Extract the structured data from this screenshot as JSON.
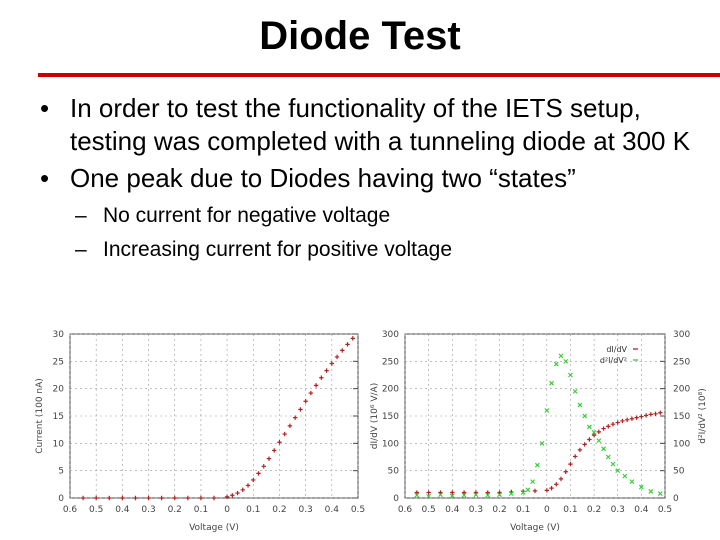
{
  "slide": {
    "title": "Diode Test",
    "bullets": [
      "In order to test the functionality of the IETS setup, testing was completed with a tunneling diode at 300 K",
      "One peak due to Diodes having two “states”"
    ],
    "sub_bullets": [
      "No current for negative voltage",
      "Increasing current for positive voltage"
    ],
    "accent_color": "#cc0000"
  },
  "chart_data": [
    {
      "type": "scatter",
      "xlabel": "Voltage (V)",
      "ylabel": "Current (100 nA)",
      "x_ticks": [
        "0.6",
        "0.5",
        "0.4",
        "0.3",
        "0.2",
        "0.1",
        "0",
        "0.1",
        "0.2",
        "0.3",
        "0.4",
        "0.5"
      ],
      "y_ticks": [
        "0",
        "5",
        "10",
        "15",
        "20",
        "25",
        "30"
      ],
      "xlim": [
        -0.6,
        0.5
      ],
      "ylim": [
        0,
        30
      ],
      "grid": true,
      "series": [
        {
          "color": "#b22222",
          "x": [
            -0.55,
            -0.5,
            -0.45,
            -0.4,
            -0.35,
            -0.3,
            -0.25,
            -0.2,
            -0.15,
            -0.1,
            -0.05,
            0,
            0.02,
            0.04,
            0.06,
            0.08,
            0.1,
            0.12,
            0.14,
            0.16,
            0.18,
            0.2,
            0.22,
            0.24,
            0.26,
            0.28,
            0.3,
            0.32,
            0.34,
            0.36,
            0.38,
            0.4,
            0.42,
            0.44,
            0.46,
            0.48
          ],
          "y": [
            0,
            0,
            0,
            0,
            0,
            0,
            0,
            0,
            0,
            0,
            0,
            0.2,
            0.5,
            0.9,
            1.5,
            2.3,
            3.3,
            4.5,
            5.8,
            7.2,
            8.7,
            10.2,
            11.7,
            13.2,
            14.7,
            16.2,
            17.7,
            19.2,
            20.6,
            22,
            23.3,
            24.6,
            25.8,
            27,
            28.1,
            29.2
          ]
        }
      ]
    },
    {
      "type": "scatter",
      "xlabel": "Voltage (V)",
      "ylabel": "dI/dV (10⁶ V/A)",
      "ylabel_right": "d²I/dV² (10⁸)",
      "x_ticks": [
        "0.6",
        "0.5",
        "0.4",
        "0.3",
        "0.2",
        "0.1",
        "0",
        "0.1",
        "0.2",
        "0.3",
        "0.4",
        "0.5"
      ],
      "y_ticks": [
        "0",
        "50",
        "100",
        "150",
        "200",
        "250",
        "300"
      ],
      "xlim": [
        -0.6,
        0.5
      ],
      "ylim": [
        0,
        300
      ],
      "grid": true,
      "legend": "top-right",
      "series": [
        {
          "name": "dI/dV",
          "color": "#b22222",
          "x": [
            -0.55,
            -0.5,
            -0.45,
            -0.4,
            -0.35,
            -0.3,
            -0.25,
            -0.2,
            -0.15,
            -0.1,
            -0.05,
            0,
            0.02,
            0.04,
            0.06,
            0.08,
            0.1,
            0.12,
            0.14,
            0.16,
            0.18,
            0.2,
            0.22,
            0.24,
            0.26,
            0.28,
            0.3,
            0.32,
            0.34,
            0.36,
            0.38,
            0.4,
            0.42,
            0.44,
            0.46,
            0.48
          ],
          "y": [
            10,
            10,
            10,
            10,
            10,
            10,
            10,
            10,
            11,
            12,
            13,
            14,
            18,
            25,
            35,
            48,
            62,
            76,
            88,
            98,
            107,
            115,
            121,
            127,
            131,
            135,
            138,
            141,
            143,
            145,
            147,
            149,
            151,
            153,
            154,
            156
          ]
        },
        {
          "name": "d²I/dV²",
          "color": "#33cc33",
          "x": [
            -0.55,
            -0.5,
            -0.45,
            -0.4,
            -0.35,
            -0.3,
            -0.25,
            -0.2,
            -0.15,
            -0.1,
            -0.08,
            -0.06,
            -0.04,
            -0.02,
            0,
            0.02,
            0.04,
            0.06,
            0.08,
            0.1,
            0.12,
            0.14,
            0.16,
            0.18,
            0.2,
            0.22,
            0.24,
            0.26,
            0.28,
            0.3,
            0.33,
            0.36,
            0.4,
            0.44,
            0.48
          ],
          "y": [
            5,
            3,
            6,
            4,
            5,
            6,
            5,
            6,
            8,
            10,
            15,
            30,
            60,
            100,
            160,
            210,
            245,
            260,
            250,
            225,
            195,
            170,
            150,
            130,
            120,
            105,
            90,
            75,
            62,
            50,
            40,
            30,
            20,
            12,
            8
          ]
        }
      ]
    }
  ]
}
